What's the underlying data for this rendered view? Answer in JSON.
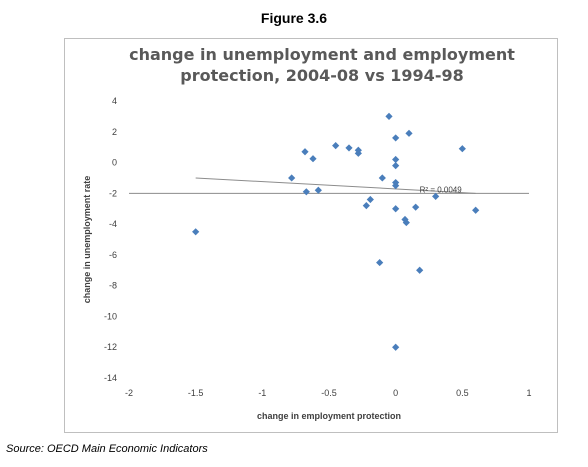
{
  "figure_label": "Figure 3.6",
  "source": "Source: OECD Main Economic Indicators",
  "colors": {
    "marker": "#4a7ebb",
    "trend": "#8c8c8c",
    "grid": "#8c8c8c",
    "text": "#404040",
    "title": "#595959"
  },
  "chart_data": {
    "type": "scatter",
    "title": [
      "change in unemployment and employment",
      "protection, 2004-08 vs 1994-98"
    ],
    "xlabel": "change in employment protection",
    "ylabel": "change in unemployment rate",
    "xlim": [
      -2,
      1
    ],
    "ylim": [
      -14,
      4
    ],
    "xticks": [
      -2,
      -1.5,
      -1,
      -0.5,
      0,
      0.5,
      1
    ],
    "xtick_labels": [
      "-2",
      "-1.5",
      "-1",
      "-0.5",
      "0",
      "0.5",
      "1"
    ],
    "yticks": [
      4,
      2,
      0,
      -2,
      -4,
      -6,
      -8,
      -10,
      -12,
      -14
    ],
    "ytick_labels": [
      "4",
      "2",
      "0",
      "-2",
      "-4",
      "-6",
      "-8",
      "-10",
      "-12",
      "-14"
    ],
    "gridline_y": [
      -2
    ],
    "trendline": {
      "x": [
        -1.5,
        0.6
      ],
      "y": [
        -1.0,
        -2.0
      ],
      "label": "R² = 0.0049"
    },
    "points": [
      {
        "x": -1.5,
        "y": -4.5
      },
      {
        "x": -0.78,
        "y": -1.0
      },
      {
        "x": -0.68,
        "y": 0.7
      },
      {
        "x": -0.67,
        "y": -1.9
      },
      {
        "x": -0.62,
        "y": 0.25
      },
      {
        "x": -0.58,
        "y": -1.8
      },
      {
        "x": -0.45,
        "y": 1.1
      },
      {
        "x": -0.35,
        "y": 0.95
      },
      {
        "x": -0.28,
        "y": 0.8
      },
      {
        "x": -0.28,
        "y": 0.6
      },
      {
        "x": -0.22,
        "y": -2.8
      },
      {
        "x": -0.19,
        "y": -2.4
      },
      {
        "x": -0.12,
        "y": -6.5
      },
      {
        "x": -0.1,
        "y": -1.0
      },
      {
        "x": -0.05,
        "y": 3.0
      },
      {
        "x": 0.0,
        "y": 1.6
      },
      {
        "x": 0.0,
        "y": 0.2
      },
      {
        "x": 0.0,
        "y": -0.2
      },
      {
        "x": 0.0,
        "y": -1.3
      },
      {
        "x": 0.0,
        "y": -1.5
      },
      {
        "x": 0.0,
        "y": -3.0
      },
      {
        "x": 0.0,
        "y": -12.0
      },
      {
        "x": 0.07,
        "y": -3.7
      },
      {
        "x": 0.08,
        "y": -3.9
      },
      {
        "x": 0.1,
        "y": 1.9
      },
      {
        "x": 0.15,
        "y": -2.9
      },
      {
        "x": 0.18,
        "y": -7.0
      },
      {
        "x": 0.3,
        "y": -2.2
      },
      {
        "x": 0.5,
        "y": 0.9
      },
      {
        "x": 0.6,
        "y": -3.1
      }
    ]
  }
}
